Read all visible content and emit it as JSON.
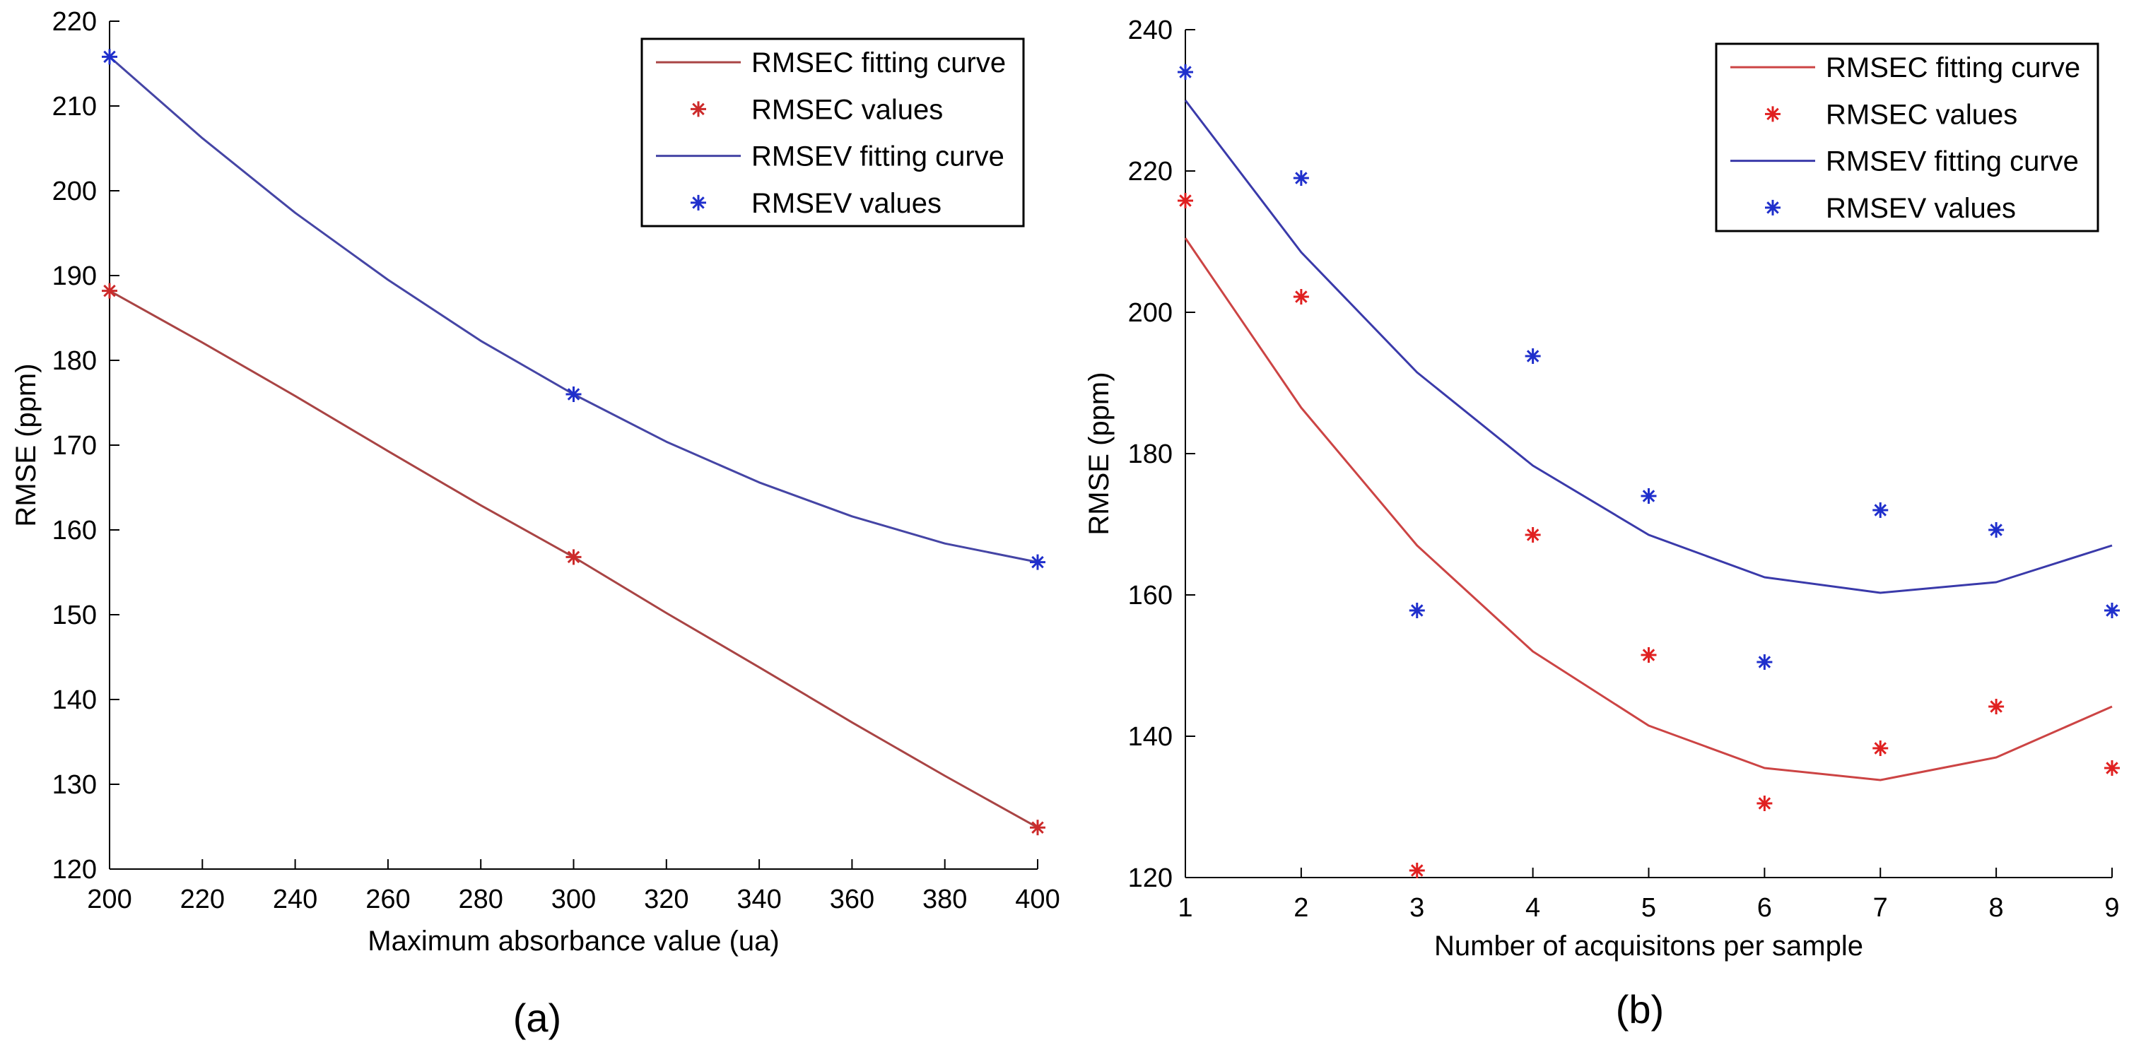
{
  "chart_data": [
    {
      "type": "line",
      "panel_label": "(a)",
      "xlabel": "Maximum absorbance value (ua)",
      "ylabel": "RMSE (ppm)",
      "xlim": [
        200,
        400
      ],
      "ylim": [
        120,
        220
      ],
      "xticks": [
        200,
        220,
        240,
        260,
        280,
        300,
        320,
        340,
        360,
        380,
        400
      ],
      "yticks": [
        120,
        130,
        140,
        150,
        160,
        170,
        180,
        190,
        200,
        210,
        220
      ],
      "legend_position": "top-right",
      "series": [
        {
          "name": "RMSEC fitting curve",
          "kind": "line",
          "color": "#a94444",
          "x": [
            200,
            220,
            240,
            260,
            280,
            300,
            320,
            340,
            360,
            380,
            400
          ],
          "y": [
            188.2,
            182.1,
            175.8,
            169.3,
            162.9,
            156.8,
            150.2,
            143.8,
            137.3,
            131.0,
            124.9
          ]
        },
        {
          "name": "RMSEC values",
          "kind": "marker",
          "color": "#cc2a2a",
          "x": [
            200,
            300,
            400
          ],
          "y": [
            188.2,
            156.8,
            124.9
          ]
        },
        {
          "name": "RMSEV fitting curve",
          "kind": "line",
          "color": "#4545a5",
          "x": [
            200,
            220,
            240,
            260,
            280,
            300,
            320,
            340,
            360,
            380,
            400
          ],
          "y": [
            215.8,
            206.2,
            197.4,
            189.5,
            182.3,
            176.0,
            170.4,
            165.6,
            161.6,
            158.4,
            156.2
          ]
        },
        {
          "name": "RMSEV values",
          "kind": "marker",
          "color": "#1f2fcc",
          "x": [
            200,
            300,
            400
          ],
          "y": [
            215.8,
            176.0,
            156.2
          ]
        }
      ]
    },
    {
      "type": "line",
      "panel_label": "(b)",
      "xlabel": "Number of acquisitons per sample",
      "ylabel": "RMSE (ppm)",
      "xlim": [
        1,
        9
      ],
      "ylim": [
        120,
        240
      ],
      "xticks": [
        1,
        2,
        3,
        4,
        5,
        6,
        7,
        8,
        9
      ],
      "yticks": [
        120,
        140,
        160,
        180,
        200,
        220,
        240
      ],
      "legend_position": "top-right",
      "series": [
        {
          "name": "RMSEC fitting curve",
          "kind": "line",
          "color": "#cc4444",
          "x": [
            1,
            2,
            3,
            4,
            5,
            6,
            7,
            8,
            9
          ],
          "y": [
            210.5,
            186.5,
            167.0,
            152.0,
            141.5,
            135.5,
            133.8,
            137.0,
            144.2
          ]
        },
        {
          "name": "RMSEC values",
          "kind": "marker",
          "color": "#e02020",
          "x": [
            1,
            2,
            3,
            4,
            5,
            6,
            7,
            8,
            9
          ],
          "y": [
            215.8,
            202.2,
            121.0,
            168.5,
            151.5,
            130.5,
            138.3,
            144.2,
            135.5
          ]
        },
        {
          "name": "RMSEV fitting curve",
          "kind": "line",
          "color": "#3a3aaa",
          "x": [
            1,
            2,
            3,
            4,
            5,
            6,
            7,
            8,
            9
          ],
          "y": [
            230.0,
            208.5,
            191.5,
            178.3,
            168.5,
            162.5,
            160.3,
            161.8,
            167.0
          ]
        },
        {
          "name": "RMSEV values",
          "kind": "marker",
          "color": "#1f2fcc",
          "x": [
            1,
            2,
            3,
            4,
            5,
            6,
            7,
            8,
            9
          ],
          "y": [
            234.0,
            219.0,
            157.8,
            193.8,
            174.0,
            150.5,
            172.0,
            169.2,
            157.8
          ]
        }
      ]
    }
  ]
}
